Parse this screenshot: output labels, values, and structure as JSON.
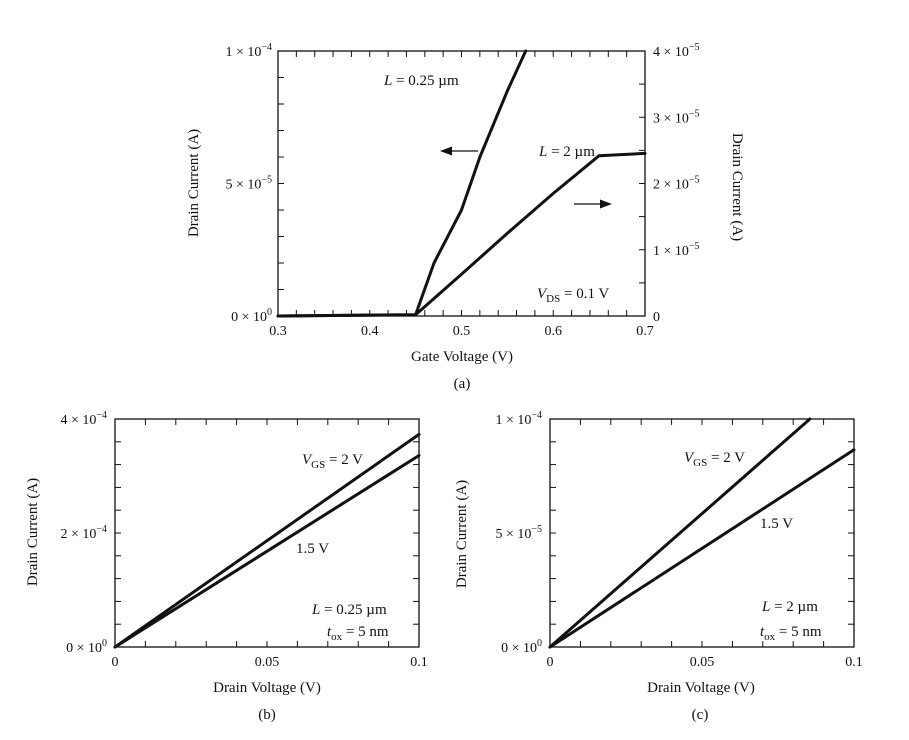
{
  "chart_data": [
    {
      "type": "line",
      "panel": "(a)",
      "xlabel": "Gate Voltage (V)",
      "ylabel_left": "Drain Current (A)",
      "ylabel_right": "Drain Current (A)",
      "xlim": [
        0.3,
        0.7
      ],
      "ylim_left": [
        0,
        0.0001
      ],
      "ylim_right": [
        0,
        4e-05
      ],
      "x_ticks": [
        "0.3",
        "0.4",
        "0.5",
        "0.6",
        "0.7"
      ],
      "y_ticks_left": [
        {
          "mant": "0 × 10",
          "exp": "0"
        },
        {
          "mant": "5 × 10",
          "exp": "−5"
        },
        {
          "mant": "1 × 10",
          "exp": "−4"
        }
      ],
      "y_ticks_right": [
        {
          "mant": "0",
          "exp": ""
        },
        {
          "mant": "1 × 10",
          "exp": "−5"
        },
        {
          "mant": "2 × 10",
          "exp": "−5"
        },
        {
          "mant": "3 × 10",
          "exp": "−5"
        },
        {
          "mant": "4 × 10",
          "exp": "−5"
        }
      ],
      "series": [
        {
          "name": "L = 0.25 µm",
          "axis": "left",
          "x": [
            0.3,
            0.45,
            0.47,
            0.5,
            0.52,
            0.55,
            0.57
          ],
          "y": [
            0,
            5e-07,
            2e-05,
            4e-05,
            6e-05,
            8.5e-05,
            0.0001
          ]
        },
        {
          "name": "L = 2 µm",
          "axis": "right",
          "x": [
            0.3,
            0.45,
            0.5,
            0.55,
            0.6,
            0.65,
            0.7
          ],
          "y": [
            0,
            2e-07,
            6.3e-06,
            1.25e-05,
            1.85e-05,
            2.42e-05,
            2.455e-05
          ]
        }
      ],
      "annotations": {
        "l025": {
          "main": "L",
          "rest": " = 0.25 µm"
        },
        "l2": {
          "main": "L",
          "rest": " = 2 µm"
        },
        "vds": {
          "main": "V",
          "sub": "DS",
          "rest": " = 0.1 V"
        }
      },
      "caption": "(a)"
    },
    {
      "type": "line",
      "panel": "(b)",
      "xlabel": "Drain Voltage (V)",
      "ylabel": "Drain Current (A)",
      "xlim": [
        0,
        0.1
      ],
      "ylim": [
        0,
        0.0004
      ],
      "x_ticks": [
        "0",
        "0.05",
        "0.1"
      ],
      "y_ticks": [
        {
          "mant": "0 × 10",
          "exp": "0"
        },
        {
          "mant": "2 × 10",
          "exp": "−4"
        },
        {
          "mant": "4 × 10",
          "exp": "−4"
        }
      ],
      "series": [
        {
          "name": "V_GS = 2 V",
          "x": [
            0,
            0.1
          ],
          "y": [
            0,
            0.000373
          ]
        },
        {
          "name": "1.5 V",
          "x": [
            0,
            0.1
          ],
          "y": [
            0,
            0.000336
          ]
        }
      ],
      "annotations": {
        "vgs": {
          "main": "V",
          "sub": "GS",
          "rest": " = 2 V"
        },
        "v15": "1.5 V",
        "length": {
          "main": "L",
          "rest": " = 0.25 µm"
        },
        "tox": {
          "main": "t",
          "sub": "ox",
          "rest": " = 5 nm"
        }
      },
      "caption": "(b)"
    },
    {
      "type": "line",
      "panel": "(c)",
      "xlabel": "Drain Voltage (V)",
      "ylabel": "Drain Current (A)",
      "xlim": [
        0,
        0.1
      ],
      "ylim": [
        0,
        0.0001
      ],
      "x_ticks": [
        "0",
        "0.05",
        "0.1"
      ],
      "y_ticks": [
        {
          "mant": "0 × 10",
          "exp": "0"
        },
        {
          "mant": "5 × 10",
          "exp": "−5"
        },
        {
          "mant": "1 × 10",
          "exp": "−4"
        }
      ],
      "series": [
        {
          "name": "V_GS = 2 V",
          "x": [
            0,
            0.0855
          ],
          "y": [
            0,
            0.0001
          ]
        },
        {
          "name": "1.5 V",
          "x": [
            0,
            0.1
          ],
          "y": [
            0,
            8.65e-05
          ]
        }
      ],
      "annotations": {
        "vgs": {
          "main": "V",
          "sub": "GS",
          "rest": " = 2 V"
        },
        "v15": "1.5 V",
        "length": {
          "main": "L",
          "rest": " = 2 µm"
        },
        "tox": {
          "main": "t",
          "sub": "ox",
          "rest": " = 5 nm"
        }
      },
      "caption": "(c)"
    }
  ]
}
